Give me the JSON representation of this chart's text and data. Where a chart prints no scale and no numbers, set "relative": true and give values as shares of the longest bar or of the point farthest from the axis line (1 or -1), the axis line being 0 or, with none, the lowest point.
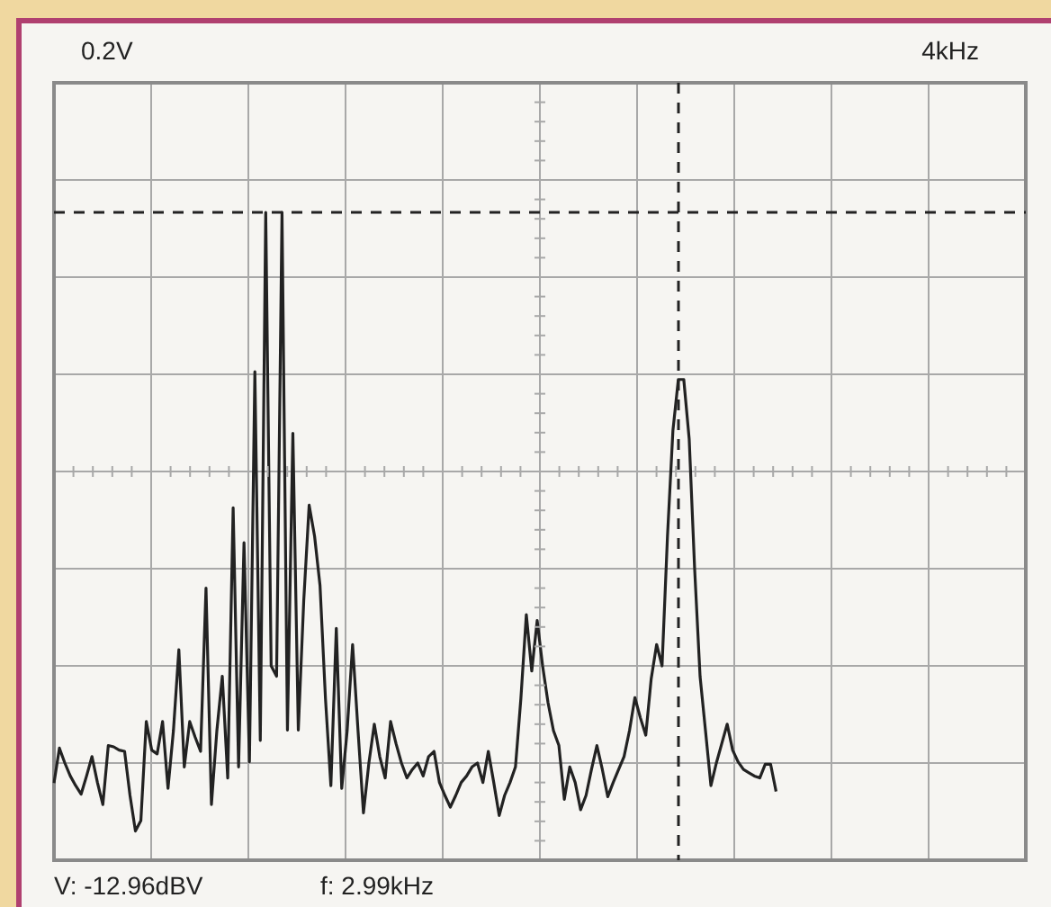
{
  "chart_data": {
    "type": "line",
    "relative": true,
    "tick_labels": false,
    "grid": true,
    "legend": false,
    "marker": "none",
    "line_style": "solid",
    "annotations": [
      "0.2V",
      "4kHz",
      "V: -12.96dBV",
      "f: 2.99kHz"
    ],
    "categories": [
      null,
      null,
      null,
      null,
      null,
      null,
      null,
      null,
      null,
      null,
      null,
      null,
      null,
      null,
      null,
      null,
      null,
      null,
      null,
      null,
      null,
      null,
      null,
      null,
      null,
      null,
      null,
      null,
      null,
      null,
      null,
      null,
      null,
      null,
      null,
      null,
      null,
      null,
      null,
      null,
      null,
      null,
      null,
      null,
      null,
      null,
      null,
      null,
      null,
      null,
      null,
      null,
      null,
      null,
      null,
      null,
      null,
      null,
      null,
      null,
      null,
      null,
      null,
      null,
      null,
      null,
      null,
      null,
      null,
      null,
      null,
      null,
      null,
      null,
      null,
      null,
      null,
      null,
      null,
      null,
      null,
      null,
      null,
      null,
      null,
      null,
      null,
      null,
      null,
      null,
      null,
      null,
      null,
      null,
      null,
      null,
      null,
      null,
      null,
      null,
      null,
      null,
      null,
      null,
      null,
      null,
      null,
      null,
      null,
      null,
      null,
      null,
      null,
      null,
      null,
      null,
      null,
      null,
      null,
      null,
      null,
      null,
      null,
      null,
      null,
      null,
      null,
      null,
      null,
      null,
      null,
      null,
      null,
      null,
      null,
      null,
      null,
      null,
      null,
      null,
      null,
      null,
      null,
      null,
      null,
      null,
      null,
      null,
      null,
      null,
      null,
      null,
      null,
      null,
      null,
      null,
      null,
      null,
      null,
      null,
      null,
      null,
      null,
      null,
      null,
      null,
      null,
      null,
      null,
      null,
      null,
      null,
      null,
      null,
      null,
      null,
      null,
      null,
      null,
      null
    ],
    "series": [
      {
        "color": "#222222",
        "values": [
          0.119,
          0.173,
          0.15,
          0.13,
          0.115,
          0.102,
          0.13,
          0.16,
          0.12,
          0.086,
          0.177,
          0.175,
          0.17,
          0.168,
          0.1,
          0.045,
          0.061,
          0.214,
          0.17,
          0.164,
          0.214,
          0.111,
          0.2,
          0.325,
          0.144,
          0.214,
          0.19,
          0.168,
          0.42,
          0.086,
          0.2,
          0.284,
          0.127,
          0.544,
          0.144,
          0.49,
          0.152,
          0.754,
          0.185,
          1.0,
          0.3,
          0.284,
          1.0,
          0.201,
          0.659,
          0.201,
          0.4,
          0.548,
          0.5,
          0.424,
          0.25,
          0.115,
          0.358,
          0.111,
          0.2,
          0.333,
          0.2,
          0.073,
          0.15,
          0.21,
          0.16,
          0.127,
          0.214,
          0.18,
          0.15,
          0.127,
          0.14,
          0.15,
          0.13,
          0.16,
          0.168,
          0.12,
          0.1,
          0.082,
          0.1,
          0.12,
          0.13,
          0.144,
          0.15,
          0.12,
          0.168,
          0.12,
          0.069,
          0.1,
          0.12,
          0.144,
          0.25,
          0.379,
          0.292,
          0.37,
          0.3,
          0.243,
          0.2,
          0.177,
          0.094,
          0.144,
          0.12,
          0.078,
          0.1,
          0.14,
          0.177,
          0.14,
          0.098,
          0.12,
          0.14,
          0.16,
          0.2,
          0.251,
          0.22,
          0.193,
          0.28,
          0.333,
          0.3,
          0.5,
          0.663,
          0.742,
          0.742,
          0.65,
          0.45,
          0.284,
          0.2,
          0.115,
          0.15,
          0.18,
          0.21,
          0.17,
          0.152,
          0.14,
          0.135,
          0.13,
          0.127,
          0.148,
          0.148,
          0.106,
          null,
          null,
          null,
          null,
          null,
          null,
          null,
          null,
          null,
          null,
          null,
          null,
          null,
          null,
          null,
          null,
          null,
          null,
          null,
          null,
          null,
          null,
          null,
          null,
          null,
          null,
          null,
          null,
          null,
          null,
          null,
          null,
          null,
          null,
          null,
          null,
          null,
          null,
          null,
          null,
          null,
          null,
          null,
          null,
          null,
          null
        ]
      }
    ],
    "ref_lines": [
      {
        "axis": "y",
        "value": 1.0,
        "color": "#222222",
        "line_style": "dashed"
      }
    ]
  }
}
